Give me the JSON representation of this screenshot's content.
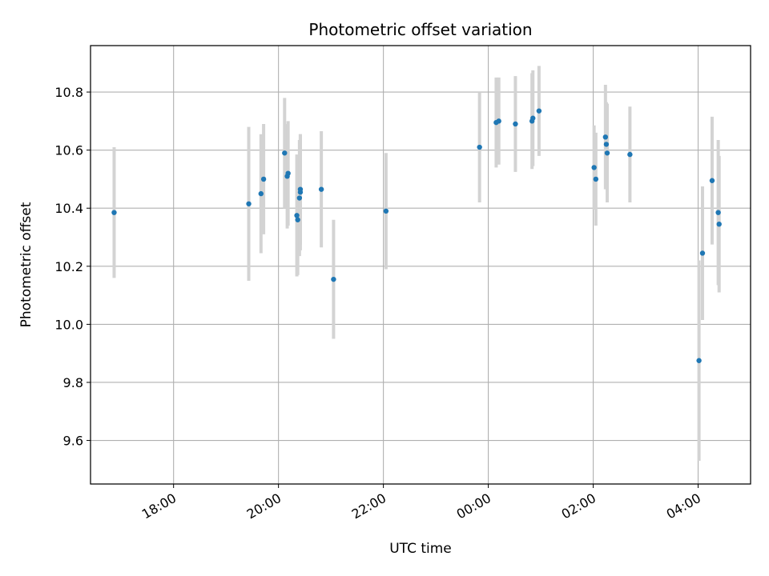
{
  "chart_data": {
    "type": "scatter",
    "title": "Photometric offset variation",
    "xlabel": "UTC time",
    "ylabel": "Photometric offset",
    "x_axis": {
      "type": "time",
      "range": [
        "16:25",
        "05:00"
      ]
    },
    "ylim": [
      9.45,
      10.96
    ],
    "x_ticks": [
      "18:00",
      "20:00",
      "22:00",
      "00:00",
      "02:00",
      "04:00"
    ],
    "y_ticks": [
      "9.6",
      "9.8",
      "10.0",
      "10.2",
      "10.4",
      "10.6",
      "10.8"
    ],
    "grid": true,
    "colors": {
      "point": "#1f77b4",
      "errorbar": "#d3d3d3",
      "grid": "#b0b0b0"
    },
    "points": [
      {
        "t": "16:52",
        "y": 10.385,
        "err": 0.225
      },
      {
        "t": "19:26",
        "y": 10.415,
        "err": 0.265
      },
      {
        "t": "19:40",
        "y": 10.45,
        "err": 0.205
      },
      {
        "t": "19:43",
        "y": 10.5,
        "err": 0.19
      },
      {
        "t": "20:07",
        "y": 10.59,
        "err": 0.19
      },
      {
        "t": "20:10",
        "y": 10.51,
        "err": 0.18
      },
      {
        "t": "20:11",
        "y": 10.52,
        "err": 0.18
      },
      {
        "t": "20:21",
        "y": 10.375,
        "err": 0.21
      },
      {
        "t": "20:22",
        "y": 10.36,
        "err": 0.19
      },
      {
        "t": "20:24",
        "y": 10.435,
        "err": 0.2
      },
      {
        "t": "20:25",
        "y": 10.455,
        "err": 0.2
      },
      {
        "t": "20:25",
        "y": 10.465,
        "err": 0.19
      },
      {
        "t": "20:49",
        "y": 10.465,
        "err": 0.2
      },
      {
        "t": "21:03",
        "y": 10.155,
        "err": 0.205
      },
      {
        "t": "22:03",
        "y": 10.39,
        "err": 0.2
      },
      {
        "t": "23:50",
        "y": 10.61,
        "err": 0.19
      },
      {
        "t": "00:09",
        "y": 10.695,
        "err": 0.155
      },
      {
        "t": "00:12",
        "y": 10.7,
        "err": 0.15
      },
      {
        "t": "00:31",
        "y": 10.69,
        "err": 0.165
      },
      {
        "t": "00:50",
        "y": 10.7,
        "err": 0.165
      },
      {
        "t": "00:51",
        "y": 10.71,
        "err": 0.165
      },
      {
        "t": "00:58",
        "y": 10.735,
        "err": 0.155
      },
      {
        "t": "02:01",
        "y": 10.54,
        "err": 0.145
      },
      {
        "t": "02:03",
        "y": 10.5,
        "err": 0.16
      },
      {
        "t": "02:14",
        "y": 10.645,
        "err": 0.18
      },
      {
        "t": "02:15",
        "y": 10.62,
        "err": 0.145
      },
      {
        "t": "02:16",
        "y": 10.59,
        "err": 0.17
      },
      {
        "t": "02:42",
        "y": 10.585,
        "err": 0.165
      },
      {
        "t": "04:01",
        "y": 9.875,
        "err": 0.345
      },
      {
        "t": "04:05",
        "y": 10.245,
        "err": 0.23
      },
      {
        "t": "04:16",
        "y": 10.495,
        "err": 0.22
      },
      {
        "t": "04:23",
        "y": 10.385,
        "err": 0.25
      },
      {
        "t": "04:24",
        "y": 10.345,
        "err": 0.235
      }
    ]
  }
}
